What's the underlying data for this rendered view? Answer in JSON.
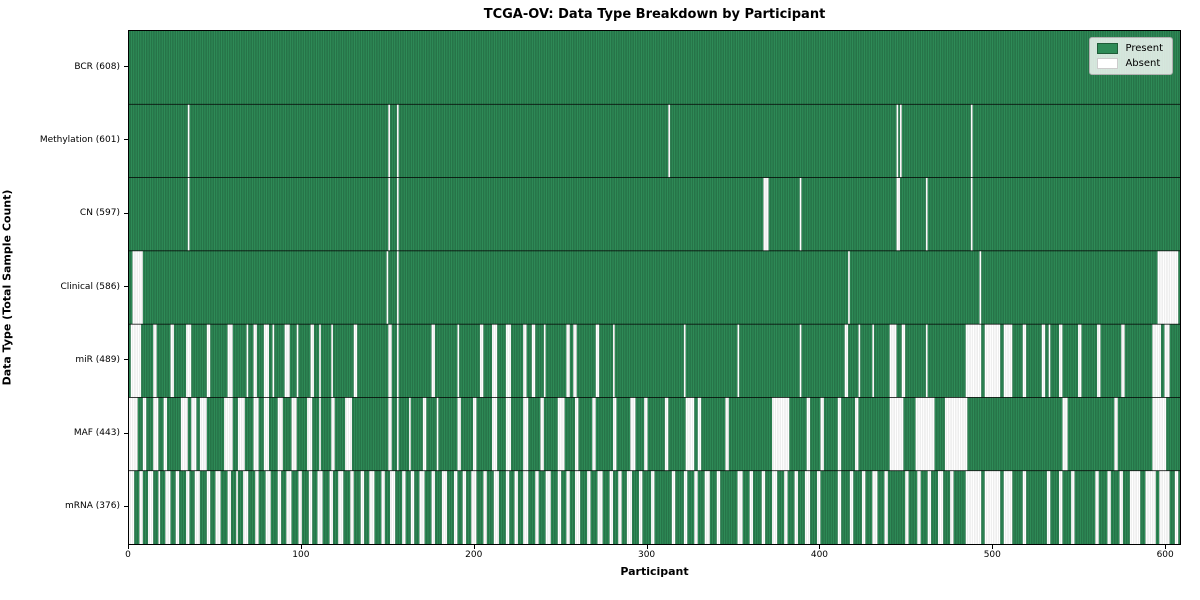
{
  "title": "TCGA-OV: Data Type Breakdown by Participant",
  "axes": {
    "xlabel": "Participant",
    "ylabel": "Data Type (Total Sample Count)"
  },
  "legend": {
    "items": [
      {
        "label": "Present",
        "color": "#2e8b57",
        "border": "#1f5c38"
      },
      {
        "label": "Absent",
        "color": "#ffffff",
        "border": "#cccccc"
      }
    ]
  },
  "chart_data": {
    "type": "heatmap",
    "title": "TCGA-OV: Data Type Breakdown by Participant",
    "xlabel": "Participant",
    "ylabel": "Data Type (Total Sample Count)",
    "x_range": [
      0,
      608
    ],
    "x_ticks": [
      0,
      100,
      200,
      300,
      400,
      500,
      600
    ],
    "grid": false,
    "legend_position": "upper right",
    "colors": {
      "present": "#2e8b57",
      "absent": "#ffffff",
      "bar_edge": "rgba(0,0,0,0.30)",
      "absent_edge": "rgba(0,0,0,0.14)",
      "row_separator": "rgba(0,0,0,0.85)"
    },
    "n_participants": 608,
    "rows": [
      {
        "label": "BCR (608)",
        "name": "BCR",
        "present_count": 608,
        "absent_ranges": []
      },
      {
        "label": "Methylation (601)",
        "name": "Methylation",
        "present_count": 601,
        "absent_ranges": [
          [
            34,
            34
          ],
          [
            150,
            150
          ],
          [
            155,
            155
          ],
          [
            312,
            312
          ],
          [
            444,
            444
          ],
          [
            446,
            446
          ],
          [
            487,
            487
          ]
        ]
      },
      {
        "label": "CN (597)",
        "name": "CN",
        "present_count": 597,
        "absent_ranges": [
          [
            34,
            34
          ],
          [
            150,
            150
          ],
          [
            155,
            155
          ],
          [
            367,
            369
          ],
          [
            388,
            388
          ],
          [
            444,
            445
          ],
          [
            461,
            461
          ],
          [
            487,
            487
          ]
        ]
      },
      {
        "label": "Clinical (586)",
        "name": "Clinical",
        "present_count": 586,
        "absent_ranges": [
          [
            2,
            7
          ],
          [
            149,
            149
          ],
          [
            155,
            155
          ],
          [
            416,
            416
          ],
          [
            492,
            492
          ],
          [
            595,
            606
          ]
        ]
      },
      {
        "label": "miR (489)",
        "name": "miR",
        "present_count": 489,
        "absent_ranges": [
          [
            1,
            6
          ],
          [
            14,
            15
          ],
          [
            24,
            25
          ],
          [
            33,
            35
          ],
          [
            45,
            46
          ],
          [
            57,
            59
          ],
          [
            68,
            68
          ],
          [
            72,
            73
          ],
          [
            78,
            80
          ],
          [
            83,
            83
          ],
          [
            90,
            92
          ],
          [
            97,
            97
          ],
          [
            105,
            106
          ],
          [
            110,
            110
          ],
          [
            117,
            117
          ],
          [
            130,
            131
          ],
          [
            150,
            151
          ],
          [
            155,
            155
          ],
          [
            175,
            176
          ],
          [
            190,
            190
          ],
          [
            203,
            204
          ],
          [
            210,
            212
          ],
          [
            218,
            220
          ],
          [
            228,
            229
          ],
          [
            233,
            234
          ],
          [
            240,
            240
          ],
          [
            253,
            254
          ],
          [
            257,
            258
          ],
          [
            270,
            271
          ],
          [
            280,
            280
          ],
          [
            321,
            321
          ],
          [
            352,
            352
          ],
          [
            388,
            388
          ],
          [
            414,
            415
          ],
          [
            422,
            422
          ],
          [
            430,
            430
          ],
          [
            440,
            443
          ],
          [
            447,
            448
          ],
          [
            461,
            461
          ],
          [
            484,
            492
          ],
          [
            495,
            503
          ],
          [
            506,
            510
          ],
          [
            517,
            518
          ],
          [
            528,
            529
          ],
          [
            532,
            532
          ],
          [
            538,
            539
          ],
          [
            549,
            550
          ],
          [
            560,
            561
          ],
          [
            574,
            575
          ],
          [
            592,
            596
          ],
          [
            599,
            601
          ]
        ]
      },
      {
        "label": "MAF (443)",
        "name": "MAF",
        "present_count": 443,
        "absent_ranges": [
          [
            0,
            4
          ],
          [
            8,
            9
          ],
          [
            14,
            16
          ],
          [
            20,
            21
          ],
          [
            30,
            33
          ],
          [
            36,
            38
          ],
          [
            41,
            44
          ],
          [
            55,
            59
          ],
          [
            63,
            66
          ],
          [
            72,
            74
          ],
          [
            78,
            80
          ],
          [
            86,
            88
          ],
          [
            94,
            96
          ],
          [
            103,
            105
          ],
          [
            110,
            110
          ],
          [
            117,
            118
          ],
          [
            125,
            128
          ],
          [
            150,
            151
          ],
          [
            155,
            155
          ],
          [
            162,
            162
          ],
          [
            170,
            171
          ],
          [
            178,
            178
          ],
          [
            190,
            191
          ],
          [
            199,
            200
          ],
          [
            210,
            212
          ],
          [
            218,
            220
          ],
          [
            228,
            230
          ],
          [
            238,
            239
          ],
          [
            248,
            251
          ],
          [
            258,
            259
          ],
          [
            268,
            269
          ],
          [
            280,
            281
          ],
          [
            290,
            292
          ],
          [
            298,
            299
          ],
          [
            310,
            311
          ],
          [
            322,
            326
          ],
          [
            329,
            330
          ],
          [
            345,
            346
          ],
          [
            372,
            381
          ],
          [
            392,
            393
          ],
          [
            400,
            401
          ],
          [
            410,
            411
          ],
          [
            420,
            421
          ],
          [
            440,
            447
          ],
          [
            455,
            465
          ],
          [
            472,
            484
          ],
          [
            540,
            542
          ],
          [
            570,
            571
          ],
          [
            592,
            599
          ]
        ]
      },
      {
        "label": "mRNA (376)",
        "name": "mRNA",
        "present_count": 376,
        "absent_ranges": [
          [
            0,
            2
          ],
          [
            6,
            7
          ],
          [
            11,
            13
          ],
          [
            17,
            17
          ],
          [
            21,
            23
          ],
          [
            27,
            28
          ],
          [
            33,
            34
          ],
          [
            38,
            40
          ],
          [
            45,
            46
          ],
          [
            50,
            52
          ],
          [
            57,
            58
          ],
          [
            62,
            62
          ],
          [
            66,
            68
          ],
          [
            73,
            74
          ],
          [
            79,
            81
          ],
          [
            86,
            87
          ],
          [
            91,
            93
          ],
          [
            98,
            99
          ],
          [
            104,
            105
          ],
          [
            109,
            111
          ],
          [
            116,
            117
          ],
          [
            121,
            123
          ],
          [
            128,
            129
          ],
          [
            134,
            135
          ],
          [
            139,
            141
          ],
          [
            146,
            147
          ],
          [
            151,
            153
          ],
          [
            158,
            159
          ],
          [
            163,
            164
          ],
          [
            168,
            170
          ],
          [
            175,
            176
          ],
          [
            181,
            183
          ],
          [
            188,
            189
          ],
          [
            193,
            194
          ],
          [
            198,
            200
          ],
          [
            205,
            206
          ],
          [
            211,
            213
          ],
          [
            218,
            219
          ],
          [
            223,
            224
          ],
          [
            228,
            230
          ],
          [
            235,
            236
          ],
          [
            241,
            243
          ],
          [
            248,
            249
          ],
          [
            253,
            254
          ],
          [
            258,
            260
          ],
          [
            265,
            266
          ],
          [
            271,
            273
          ],
          [
            278,
            279
          ],
          [
            283,
            284
          ],
          [
            288,
            290
          ],
          [
            295,
            296
          ],
          [
            302,
            303
          ],
          [
            314,
            315
          ],
          [
            321,
            322
          ],
          [
            327,
            328
          ],
          [
            333,
            335
          ],
          [
            340,
            341
          ],
          [
            352,
            354
          ],
          [
            359,
            360
          ],
          [
            366,
            367
          ],
          [
            372,
            374
          ],
          [
            379,
            380
          ],
          [
            385,
            386
          ],
          [
            391,
            393
          ],
          [
            398,
            399
          ],
          [
            410,
            411
          ],
          [
            417,
            418
          ],
          [
            424,
            425
          ],
          [
            430,
            432
          ],
          [
            437,
            438
          ],
          [
            449,
            450
          ],
          [
            456,
            457
          ],
          [
            462,
            463
          ],
          [
            468,
            470
          ],
          [
            475,
            476
          ],
          [
            484,
            492
          ],
          [
            495,
            503
          ],
          [
            506,
            510
          ],
          [
            517,
            518
          ],
          [
            531,
            532
          ],
          [
            538,
            539
          ],
          [
            545,
            546
          ],
          [
            559,
            560
          ],
          [
            566,
            567
          ],
          [
            573,
            574
          ],
          [
            579,
            584
          ],
          [
            588,
            593
          ],
          [
            596,
            601
          ],
          [
            605,
            606
          ]
        ]
      }
    ]
  }
}
